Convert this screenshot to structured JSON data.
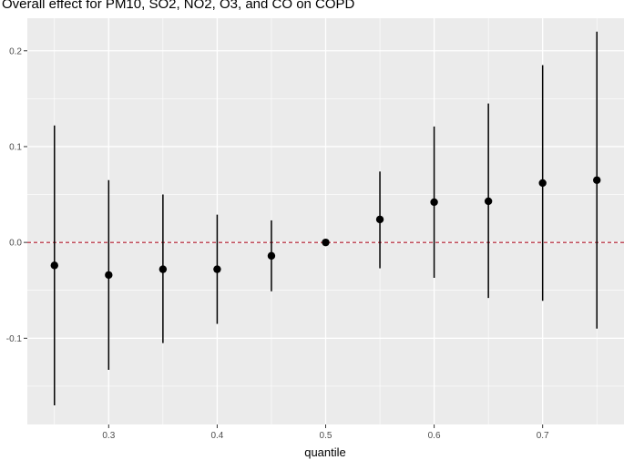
{
  "chart_data": {
    "type": "scatter",
    "title": "Overall effect for PM10, SO2, NO2, O3, and CO on COPD",
    "xlabel": "quantile",
    "ylabel": "",
    "xlim": [
      0.225,
      0.775
    ],
    "ylim": [
      -0.19,
      0.234
    ],
    "x_ticks": [
      0.3,
      0.4,
      0.5,
      0.6,
      0.7
    ],
    "x_tick_labels": [
      "0.3",
      "0.4",
      "0.5",
      "0.6",
      "0.7"
    ],
    "y_ticks": [
      -0.1,
      0.0,
      0.1,
      0.2
    ],
    "y_tick_labels": [
      "-0.1",
      "0.0",
      "0.1",
      "0.2"
    ],
    "reference_line": {
      "y": 0,
      "style": "dashed",
      "color": "#b2182b"
    },
    "grid": true,
    "panel_background": "#ebebeb",
    "point_color": "#000000",
    "series": [
      {
        "points": [
          {
            "x": 0.25,
            "y": -0.024,
            "lower": -0.17,
            "upper": 0.122
          },
          {
            "x": 0.3,
            "y": -0.034,
            "lower": -0.133,
            "upper": 0.065
          },
          {
            "x": 0.35,
            "y": -0.028,
            "lower": -0.105,
            "upper": 0.05
          },
          {
            "x": 0.4,
            "y": -0.028,
            "lower": -0.085,
            "upper": 0.029
          },
          {
            "x": 0.45,
            "y": -0.014,
            "lower": -0.051,
            "upper": 0.023
          },
          {
            "x": 0.5,
            "y": 0.0,
            "lower": 0.0,
            "upper": 0.0
          },
          {
            "x": 0.55,
            "y": 0.024,
            "lower": -0.027,
            "upper": 0.074
          },
          {
            "x": 0.6,
            "y": 0.042,
            "lower": -0.037,
            "upper": 0.121
          },
          {
            "x": 0.65,
            "y": 0.043,
            "lower": -0.058,
            "upper": 0.145
          },
          {
            "x": 0.7,
            "y": 0.062,
            "lower": -0.061,
            "upper": 0.185
          },
          {
            "x": 0.75,
            "y": 0.065,
            "lower": -0.09,
            "upper": 0.22
          }
        ]
      }
    ]
  }
}
